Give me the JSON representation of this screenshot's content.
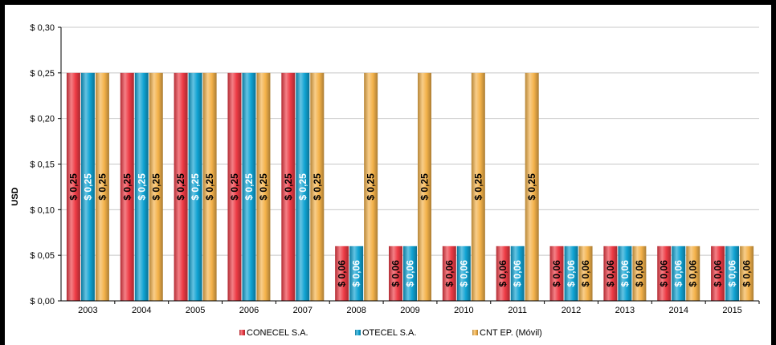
{
  "chart_data": {
    "type": "bar",
    "categories": [
      "2003",
      "2004",
      "2005",
      "2006",
      "2007",
      "2008",
      "2009",
      "2010",
      "2011",
      "2012",
      "2013",
      "2014",
      "2015"
    ],
    "series": [
      {
        "name": "CONECEL S.A.",
        "color": "#ee3b45",
        "label_color": "#000000",
        "values": [
          0.25,
          0.25,
          0.25,
          0.25,
          0.25,
          0.06,
          0.06,
          0.06,
          0.06,
          0.06,
          0.06,
          0.06,
          0.06
        ],
        "labels": [
          "$ 0,25",
          "$ 0,25",
          "$ 0,25",
          "$ 0,25",
          "$ 0,25",
          "$ 0,06",
          "$ 0,06",
          "$ 0,06",
          "$ 0,06",
          "$ 0,06",
          "$ 0,06",
          "$ 0,06",
          "$ 0,06"
        ]
      },
      {
        "name": "OTECEL S.A.",
        "color": "#10a3d3",
        "label_color": "#ffffff",
        "values": [
          0.25,
          0.25,
          0.25,
          0.25,
          0.25,
          0.06,
          0.06,
          0.06,
          0.06,
          0.06,
          0.06,
          0.06,
          0.06
        ],
        "labels": [
          "$ 0,25",
          "$ 0,25",
          "$ 0,25",
          "$ 0,25",
          "$ 0,25",
          "$ 0,06",
          "$ 0,06",
          "$ 0,06",
          "$ 0,06",
          "$ 0,06",
          "$ 0,06",
          "$ 0,06",
          "$ 0,06"
        ]
      },
      {
        "name": "CNT EP. (Móvil)",
        "color": "#f4b24a",
        "label_color": "#000000",
        "values": [
          0.25,
          0.25,
          0.25,
          0.25,
          0.25,
          0.25,
          0.25,
          0.25,
          0.25,
          0.06,
          0.06,
          0.06,
          0.06
        ],
        "labels": [
          "$ 0,25",
          "$ 0,25",
          "$ 0,25",
          "$ 0,25",
          "$ 0,25",
          "$ 0,25",
          "$ 0,25",
          "$ 0,25",
          "$ 0,25",
          "$ 0,06",
          "$ 0,06",
          "$ 0,06",
          "$ 0,06"
        ]
      }
    ],
    "ylim": [
      0,
      0.3
    ],
    "yticks": [
      0,
      0.05,
      0.1,
      0.15,
      0.2,
      0.25,
      0.3
    ],
    "ytick_labels": [
      "$ 0,00",
      "$ 0,05",
      "$ 0,10",
      "$ 0,15",
      "$ 0,20",
      "$ 0,25",
      "$ 0,30"
    ],
    "ylabel": "USD",
    "xlabel": "",
    "title": "",
    "grid": true,
    "legend_position": "bottom-center"
  }
}
